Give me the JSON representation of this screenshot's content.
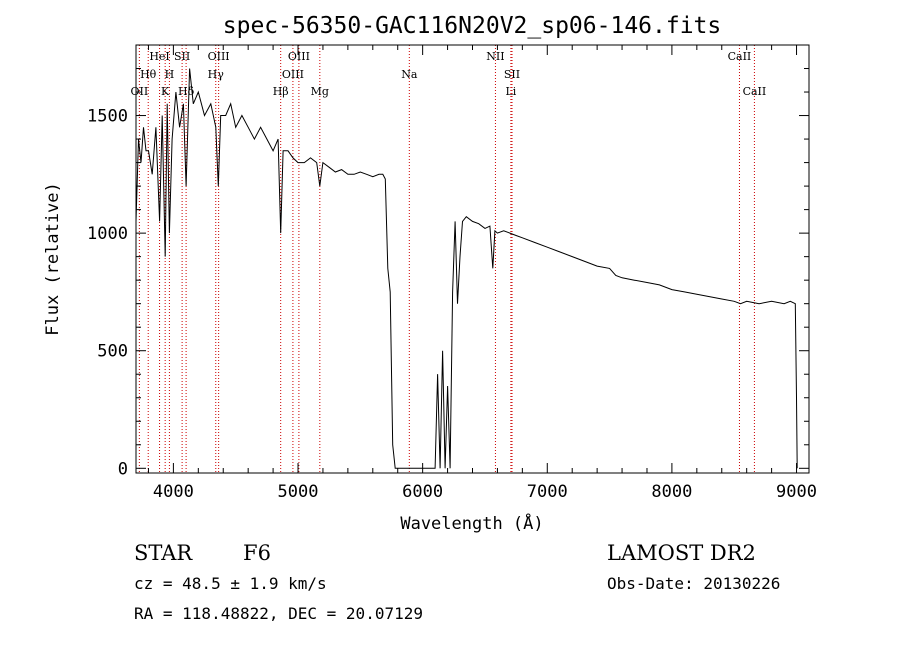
{
  "chart_data": {
    "type": "line",
    "title": "spec-56350-GAC116N20V2_sp06-146.fits",
    "xlabel": "Wavelength (Å)",
    "ylabel": "Flux (relative)",
    "xlim": [
      3700,
      9100
    ],
    "ylim": [
      -20,
      1800
    ],
    "x_ticks": [
      4000,
      5000,
      6000,
      7000,
      8000,
      9000
    ],
    "x_tick_labels": [
      "4000",
      "5000",
      "6000",
      "7000",
      "8000",
      "9000"
    ],
    "y_ticks": [
      0,
      500,
      1000,
      1500
    ],
    "y_tick_labels": [
      "0",
      "500",
      "1000",
      "1500"
    ],
    "grid": false,
    "series": [
      {
        "name": "spectrum",
        "color": "#000000",
        "x": [
          3700,
          3720,
          3740,
          3760,
          3780,
          3800,
          3830,
          3860,
          3889,
          3910,
          3934,
          3950,
          3968,
          3990,
          4020,
          4050,
          4080,
          4102,
          4130,
          4160,
          4200,
          4250,
          4300,
          4340,
          4360,
          4380,
          4420,
          4460,
          4500,
          4550,
          4600,
          4650,
          4700,
          4750,
          4800,
          4840,
          4861,
          4880,
          4920,
          4960,
          5000,
          5050,
          5100,
          5150,
          5175,
          5200,
          5250,
          5300,
          5350,
          5400,
          5450,
          5500,
          5550,
          5600,
          5650,
          5680,
          5700,
          5720,
          5740,
          5760,
          5780,
          5800,
          5850,
          5900,
          5950,
          6000,
          6050,
          6100,
          6120,
          6140,
          6160,
          6180,
          6200,
          6220,
          6240,
          6260,
          6280,
          6300,
          6320,
          6350,
          6400,
          6450,
          6500,
          6540,
          6563,
          6580,
          6600,
          6650,
          6700,
          6750,
          6800,
          6900,
          7000,
          7100,
          7200,
          7300,
          7400,
          7500,
          7550,
          7600,
          7700,
          7800,
          7900,
          8000,
          8100,
          8200,
          8300,
          8400,
          8500,
          8550,
          8600,
          8700,
          8800,
          8900,
          8950,
          8990,
          9000,
          9005
        ],
        "y": [
          1050,
          1400,
          1300,
          1450,
          1350,
          1350,
          1250,
          1450,
          1050,
          1500,
          900,
          1550,
          1000,
          1400,
          1600,
          1450,
          1550,
          1200,
          1700,
          1550,
          1600,
          1500,
          1550,
          1450,
          1200,
          1500,
          1500,
          1550,
          1450,
          1500,
          1450,
          1400,
          1450,
          1400,
          1350,
          1400,
          1000,
          1350,
          1350,
          1320,
          1300,
          1300,
          1320,
          1300,
          1200,
          1300,
          1280,
          1260,
          1270,
          1250,
          1250,
          1260,
          1250,
          1240,
          1250,
          1250,
          1230,
          850,
          750,
          100,
          0,
          0,
          0,
          0,
          0,
          0,
          0,
          0,
          400,
          0,
          500,
          0,
          350,
          0,
          750,
          1050,
          700,
          900,
          1050,
          1070,
          1050,
          1040,
          1020,
          1030,
          850,
          1010,
          1000,
          1010,
          1000,
          990,
          980,
          960,
          940,
          920,
          900,
          880,
          860,
          850,
          820,
          810,
          800,
          790,
          780,
          760,
          750,
          740,
          730,
          720,
          710,
          700,
          710,
          700,
          710,
          700,
          710,
          700,
          300,
          0
        ]
      }
    ],
    "line_markers": [
      {
        "label": "OII",
        "wavelength": 3727,
        "row": 2
      },
      {
        "label": "Hθ",
        "wavelength": 3798,
        "row": 1
      },
      {
        "label": "HeI",
        "wavelength": 3889,
        "row": 0
      },
      {
        "label": "K",
        "wavelength": 3934,
        "row": 2
      },
      {
        "label": "H",
        "wavelength": 3968,
        "row": 1
      },
      {
        "label": "SII",
        "wavelength": 4070,
        "row": 0
      },
      {
        "label": "Hδ",
        "wavelength": 4102,
        "row": 2
      },
      {
        "label": "Hγ",
        "wavelength": 4340,
        "row": 1
      },
      {
        "label": "OIII",
        "wavelength": 4363,
        "row": 0
      },
      {
        "label": "Hβ",
        "wavelength": 4861,
        "row": 2
      },
      {
        "label": "OIII",
        "wavelength": 4959,
        "row": 1
      },
      {
        "label": "OIII",
        "wavelength": 5007,
        "row": 0
      },
      {
        "label": "Mg",
        "wavelength": 5175,
        "row": 2
      },
      {
        "label": "Na",
        "wavelength": 5893,
        "row": 1
      },
      {
        "label": "NII",
        "wavelength": 6584,
        "row": 0
      },
      {
        "label": "Li",
        "wavelength": 6708,
        "row": 2
      },
      {
        "label": "SII",
        "wavelength": 6717,
        "row": 1
      },
      {
        "label": "CaII",
        "wavelength": 8542,
        "row": 0
      },
      {
        "label": "CaII",
        "wavelength": 8662,
        "row": 2
      }
    ],
    "marker_color": "#cc0000"
  },
  "info": {
    "class_label": "STAR",
    "subclass": "F6",
    "redshift_text": "cz =  48.5 ± 1.9 km/s",
    "coords_text": "RA = 118.48822, DEC =  20.07129",
    "survey": "LAMOST DR2",
    "obs_date": "Obs-Date: 20130226"
  }
}
